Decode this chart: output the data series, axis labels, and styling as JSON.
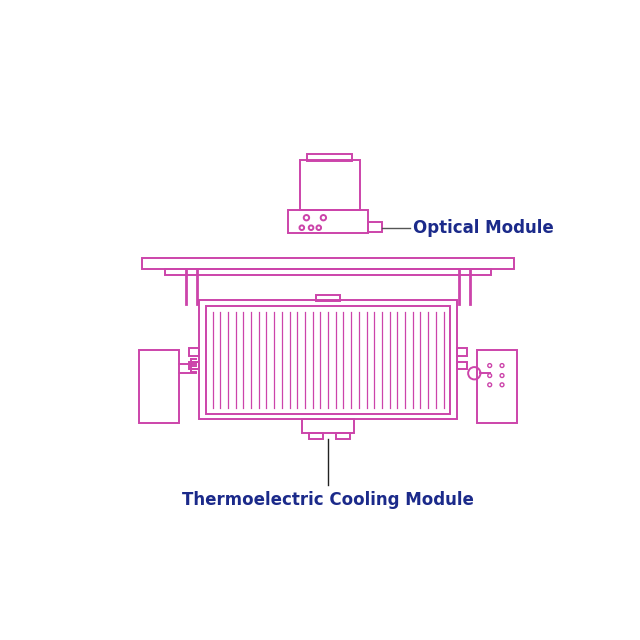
{
  "bg_color": "#ffffff",
  "draw_color": "#CC44AA",
  "label_color": "#1B2A8A",
  "label_optical": "Optical Module",
  "label_cooling": "Thermoelectric Cooling Module",
  "fig_width": 6.4,
  "fig_height": 6.4
}
